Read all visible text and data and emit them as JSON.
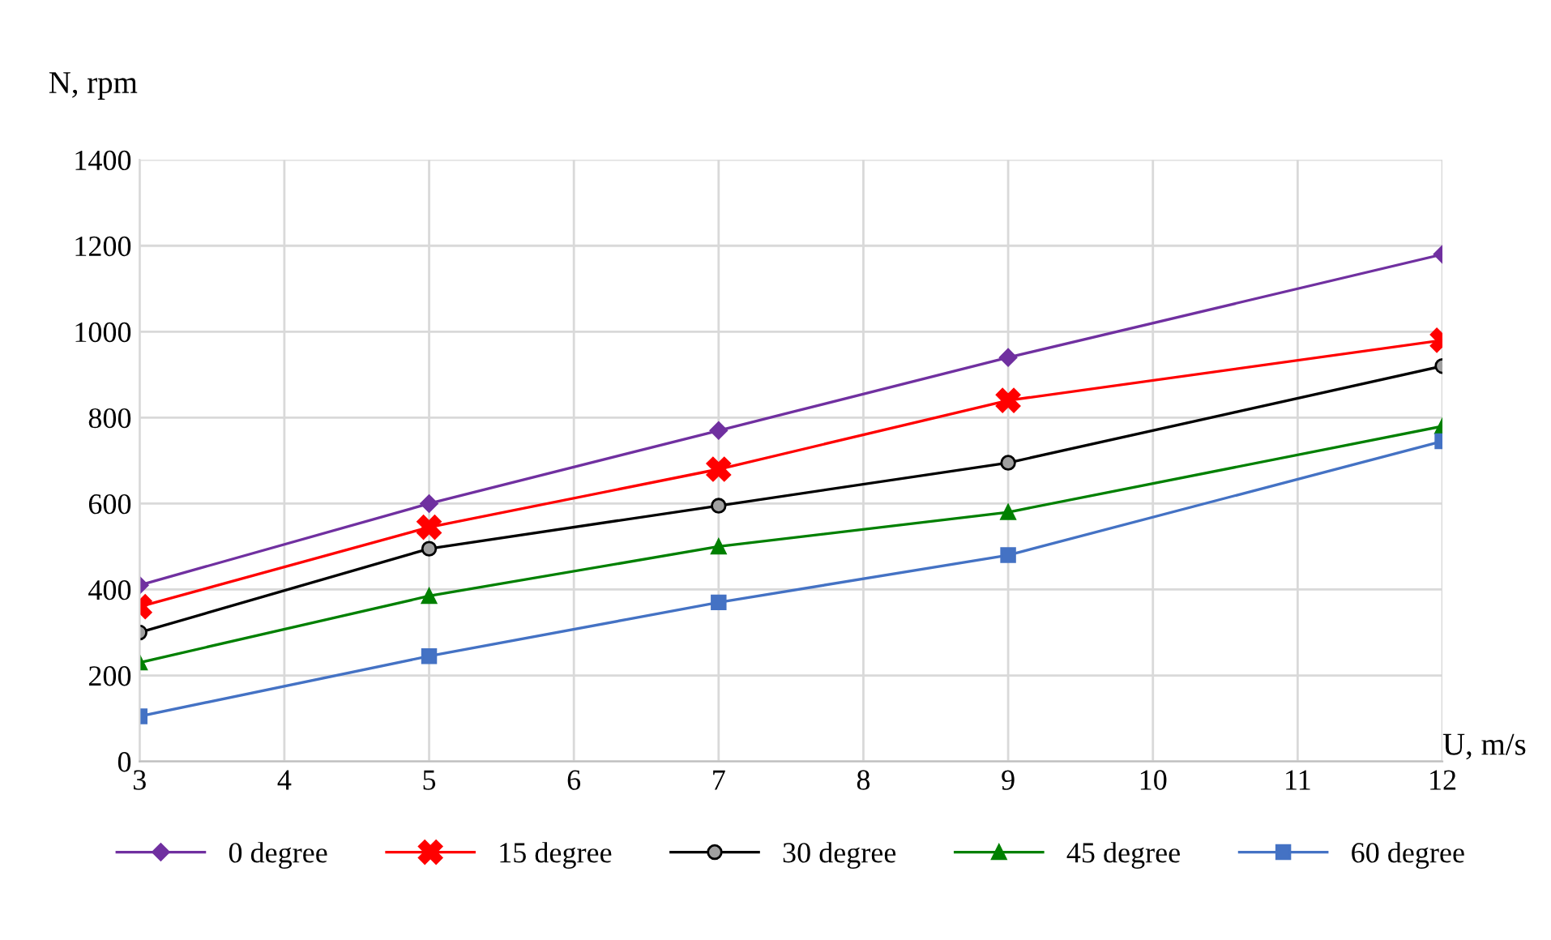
{
  "chart_data": {
    "type": "line",
    "xlabel": "U, m/s",
    "ylabel": "N, rpm",
    "x": [
      3,
      5,
      7,
      9,
      12
    ],
    "series": [
      {
        "name": "0 degree",
        "color": "#7030a0",
        "marker": "diamond",
        "values": [
          410,
          600,
          770,
          940,
          1180
        ]
      },
      {
        "name": "15 degree",
        "color": "#ff0000",
        "marker": "cross",
        "values": [
          360,
          545,
          680,
          840,
          980
        ]
      },
      {
        "name": "30 degree",
        "color": "#000000",
        "marker": "circle",
        "values": [
          300,
          495,
          595,
          695,
          920
        ]
      },
      {
        "name": "45 degree",
        "color": "#008000",
        "marker": "triangle",
        "values": [
          230,
          385,
          500,
          580,
          780
        ]
      },
      {
        "name": "60 degree",
        "color": "#4472c4",
        "marker": "square",
        "values": [
          105,
          245,
          370,
          480,
          745
        ]
      }
    ],
    "xlim": [
      3,
      12
    ],
    "xticks": [
      3,
      4,
      5,
      6,
      7,
      8,
      9,
      10,
      11,
      12
    ],
    "ylim": [
      0,
      1400
    ],
    "yticks": [
      0,
      200,
      400,
      600,
      800,
      1000,
      1200,
      1400
    ],
    "grid": true,
    "legend": "bottom",
    "line_style": "solid"
  }
}
